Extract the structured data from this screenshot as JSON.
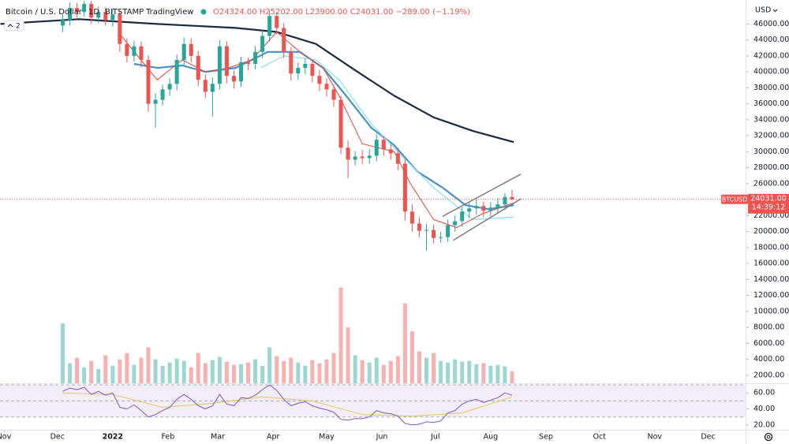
{
  "chart_data": {
    "type": "candlestick",
    "title": "Bitcoin / U.S. Dollar",
    "interval": "1D",
    "exchange": "BITSTAMP",
    "brand": "TradingView",
    "ohlc_legend": "O24324.00 H25202.00 L23900.00 C24031.00 −289.00 (−1.19%)",
    "collapse_count": "2",
    "currency": "USD",
    "symbol": "BTCUSD",
    "last_price": "24031.00",
    "countdown": "14:39:12",
    "up_color": "#26a69a",
    "down_color": "#ef5350",
    "xlim": [
      -2.2,
      416
    ],
    "xticks": [
      {
        "value": 0,
        "label": "Nov"
      },
      {
        "value": 30,
        "label": "Dec"
      },
      {
        "value": 61,
        "label": "2022"
      },
      {
        "value": 92,
        "label": "Feb"
      },
      {
        "value": 120,
        "label": "Mar"
      },
      {
        "value": 151,
        "label": "Apr"
      },
      {
        "value": 181,
        "label": "May"
      },
      {
        "value": 212,
        "label": "Jun"
      },
      {
        "value": 242,
        "label": "Jul"
      },
      {
        "value": 273,
        "label": "Aug"
      },
      {
        "value": 304,
        "label": "Sep"
      },
      {
        "value": 334,
        "label": "Oct"
      },
      {
        "value": 365,
        "label": "Nov"
      },
      {
        "value": 395,
        "label": "Dec"
      }
    ],
    "ylim": [
      1000,
      49000
    ],
    "yticks": [
      {
        "value": 2000,
        "label": "2000.00"
      },
      {
        "value": 4000,
        "label": "4000.00"
      },
      {
        "value": 6000,
        "label": "6000.00"
      },
      {
        "value": 8000,
        "label": "8000.00"
      },
      {
        "value": 10000,
        "label": "10000.00"
      },
      {
        "value": 12000,
        "label": "12000.00"
      },
      {
        "value": 14000,
        "label": "14000.00"
      },
      {
        "value": 16000,
        "label": "16000.00"
      },
      {
        "value": 18000,
        "label": "18000.00"
      },
      {
        "value": 20000,
        "label": "20000.00"
      },
      {
        "value": 22000,
        "label": "22000.00"
      },
      {
        "value": 24000,
        "label": "24000.00"
      },
      {
        "value": 26000,
        "label": "26000.00"
      },
      {
        "value": 28000,
        "label": "28000.00"
      },
      {
        "value": 30000,
        "label": "30000.00"
      },
      {
        "value": 32000,
        "label": "32000.00"
      },
      {
        "value": 34000,
        "label": "34000.00"
      },
      {
        "value": 36000,
        "label": "36000.00"
      },
      {
        "value": 38000,
        "label": "38000.00"
      },
      {
        "value": 40000,
        "label": "40000.00"
      },
      {
        "value": 42000,
        "label": "42000.00"
      },
      {
        "value": 44000,
        "label": "44000.00"
      },
      {
        "value": 46000,
        "label": "46000.00"
      }
    ],
    "last_close": 24031,
    "x": [
      33,
      37,
      41,
      45,
      49,
      53,
      57,
      61,
      65,
      69,
      73,
      77,
      81,
      85,
      89,
      93,
      97,
      101,
      105,
      109,
      113,
      117,
      121,
      125,
      129,
      133,
      137,
      141,
      145,
      149,
      153,
      157,
      161,
      165,
      169,
      173,
      177,
      181,
      185,
      189,
      193,
      197,
      201,
      205,
      209,
      213,
      217,
      221,
      225,
      229,
      233,
      237,
      241,
      245,
      249,
      253,
      257,
      261,
      265,
      269,
      273,
      277,
      281,
      285
    ],
    "open": [
      45800,
      46500,
      48000,
      47500,
      48500,
      46800,
      47500,
      46500,
      47200,
      43500,
      42000,
      43200,
      41500,
      36000,
      36500,
      37800,
      38500,
      41500,
      43500,
      42000,
      39000,
      37500,
      38500,
      43200,
      39500,
      38800,
      41200,
      41000,
      42500,
      44500,
      47000,
      45500,
      42500,
      39800,
      40500,
      41000,
      39500,
      38500,
      37800,
      36500,
      30500,
      29000,
      29400,
      29200,
      29500,
      31500,
      30300,
      29800,
      28500,
      22500,
      21000,
      20100,
      20200,
      19200,
      19300,
      20800,
      21300,
      22500,
      22900,
      23200,
      22600,
      23000,
      23400,
      24324
    ],
    "high": [
      47200,
      48700,
      48600,
      48900,
      48900,
      48200,
      48100,
      47900,
      47800,
      44200,
      43900,
      43800,
      42100,
      37300,
      38400,
      39200,
      42200,
      44300,
      44200,
      42600,
      39700,
      39300,
      44000,
      43800,
      40200,
      41900,
      41800,
      43200,
      45200,
      47600,
      47500,
      46100,
      43100,
      41200,
      41700,
      41600,
      40200,
      39200,
      38400,
      37000,
      31400,
      30100,
      30200,
      30300,
      32200,
      32000,
      30900,
      30500,
      29100,
      23400,
      21800,
      21000,
      20900,
      20000,
      21500,
      22000,
      23100,
      23600,
      24000,
      23800,
      23700,
      24200,
      24800,
      25202
    ],
    "low": [
      45000,
      45800,
      46800,
      46900,
      46000,
      46100,
      45800,
      45700,
      42500,
      41200,
      41300,
      40600,
      35000,
      33000,
      35800,
      37000,
      37700,
      40700,
      41200,
      38200,
      36700,
      34400,
      37800,
      38600,
      37900,
      38100,
      40200,
      40300,
      41700,
      43800,
      44700,
      41700,
      38900,
      39000,
      39700,
      38700,
      37600,
      36900,
      35600,
      29700,
      26700,
      28300,
      28400,
      28500,
      28800,
      29500,
      29000,
      27700,
      21400,
      20000,
      19300,
      17600,
      18500,
      18600,
      18700,
      20000,
      20600,
      21700,
      22100,
      21800,
      21900,
      22300,
      22700,
      23900
    ],
    "close": [
      46500,
      48000,
      47500,
      48500,
      46800,
      47500,
      46500,
      47200,
      43500,
      42000,
      43200,
      41500,
      36000,
      36500,
      37800,
      38500,
      41500,
      43500,
      42000,
      39000,
      37500,
      38500,
      43200,
      39500,
      38800,
      41200,
      41000,
      42500,
      44500,
      47000,
      45500,
      42500,
      39800,
      40500,
      41000,
      39500,
      38500,
      37800,
      36500,
      30500,
      29000,
      29400,
      29200,
      29500,
      31500,
      30300,
      29800,
      28500,
      22500,
      21000,
      20100,
      20200,
      19200,
      19300,
      20800,
      21300,
      22500,
      22900,
      23200,
      22600,
      23000,
      23400,
      24324,
      24031
    ],
    "volume": [
      8500,
      3500,
      4200,
      3000,
      3800,
      2800,
      4500,
      3200,
      4000,
      4800,
      3300,
      4200,
      5500,
      4000,
      3200,
      3600,
      4100,
      3800,
      3000,
      4800,
      3500,
      3900,
      4300,
      3700,
      3300,
      3400,
      3600,
      4000,
      3200,
      5500,
      4400,
      3800,
      4200,
      3600,
      3200,
      3900,
      3500,
      4000,
      4800,
      13000,
      8000,
      4500,
      3900,
      3600,
      4200,
      3300,
      3800,
      4400,
      11000,
      7500,
      5000,
      4200,
      4800,
      3800,
      3600,
      4000,
      3700,
      3800,
      3400,
      3500,
      3200,
      3300,
      3100,
      2500
    ],
    "lines": [
      {
        "color": "#1e2a44",
        "width": 2.2,
        "x": [
          -2,
          42,
          86,
          130,
          153,
          175,
          197,
          219,
          241,
          263,
          286
        ],
        "values": [
          46000,
          46600,
          46000,
          45500,
          45000,
          43500,
          40200,
          37000,
          34300,
          32600,
          31200
        ]
      },
      {
        "color": "#4a90c8",
        "width": 2.2,
        "x": [
          73,
          86,
          100,
          113,
          130,
          148,
          166,
          179,
          192,
          206,
          219,
          232,
          246,
          259,
          272,
          286
        ],
        "values": [
          41000,
          40500,
          40800,
          40000,
          40500,
          42500,
          42500,
          40500,
          37000,
          33000,
          30800,
          27500,
          25500,
          23300,
          22800,
          23300
        ]
      },
      {
        "color": "#8ce3ec",
        "width": 1.3,
        "x": [
          144,
          157,
          175,
          188,
          206,
          223,
          241,
          263,
          286
        ],
        "values": [
          40500,
          42000,
          41500,
          39000,
          33500,
          29500,
          25500,
          21500,
          21800
        ]
      },
      {
        "color": "#e0453a",
        "width": 1,
        "x": [
          64,
          86,
          100,
          113,
          126,
          139,
          153,
          166,
          179,
          188,
          201,
          219,
          228,
          241,
          254,
          268,
          286
        ],
        "values": [
          45000,
          39000,
          41500,
          40000,
          40500,
          41500,
          45000,
          42500,
          40500,
          37000,
          31000,
          30000,
          26000,
          21500,
          20500,
          22200,
          23600
        ]
      }
    ],
    "drawings": [
      {
        "color": "#787b86",
        "x": [
          246,
          290
        ],
        "values": [
          21900,
          27200
        ]
      },
      {
        "color": "#787b86",
        "x": [
          252,
          290
        ],
        "values": [
          18900,
          24100
        ]
      }
    ],
    "rsi": {
      "ylim": [
        14,
        71
      ],
      "yticks": [
        {
          "value": 60,
          "label": "60.00"
        },
        {
          "value": 40,
          "label": "40.00"
        },
        {
          "value": 20,
          "label": "20.00"
        }
      ],
      "bands": [
        30,
        50,
        70
      ],
      "color": "#7e57c2",
      "values": [
        62,
        66,
        64,
        67,
        58,
        62,
        57,
        60,
        42,
        40,
        45,
        38,
        30,
        33,
        38,
        42,
        52,
        58,
        52,
        44,
        40,
        44,
        58,
        46,
        44,
        54,
        53,
        57,
        64,
        70,
        63,
        52,
        44,
        47,
        49,
        44,
        41,
        39,
        36,
        27,
        26,
        28,
        28,
        30,
        38,
        35,
        34,
        31,
        22,
        20,
        21,
        24,
        23,
        25,
        35,
        38,
        46,
        50,
        52,
        48,
        51,
        54,
        60,
        57
      ],
      "ma": {
        "color": "#e3c55a",
        "x": [
          33,
          61,
          89,
          117,
          145,
          173,
          201,
          229,
          257,
          285
        ],
        "values": [
          60,
          58,
          42,
          47,
          55,
          50,
          33,
          31,
          35,
          55
        ]
      }
    }
  }
}
